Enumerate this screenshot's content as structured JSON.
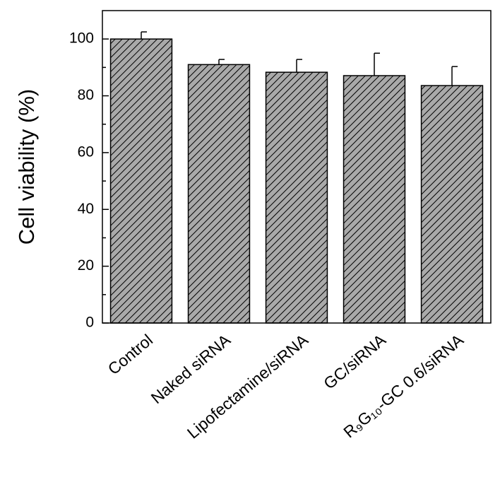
{
  "chart_data": {
    "type": "bar",
    "y_label": "Cell viability (%)",
    "categories": [
      "Control",
      "Naked siRNA",
      "Lipofectamine/siRNA",
      "GC/siRNA",
      "R₉G₁₀-GC 0.6/siRNA"
    ],
    "values": [
      100,
      91,
      88.3,
      87.1,
      83.6
    ],
    "errors": [
      2.5,
      1.8,
      4.5,
      7.9,
      6.7
    ],
    "color": "#a9a9a9",
    "ylim": [
      0,
      110
    ],
    "yticks": [
      0,
      20,
      40,
      60,
      80,
      100
    ],
    "minor_yticks": [
      10,
      30,
      50,
      70,
      90
    ],
    "grid": false
  }
}
